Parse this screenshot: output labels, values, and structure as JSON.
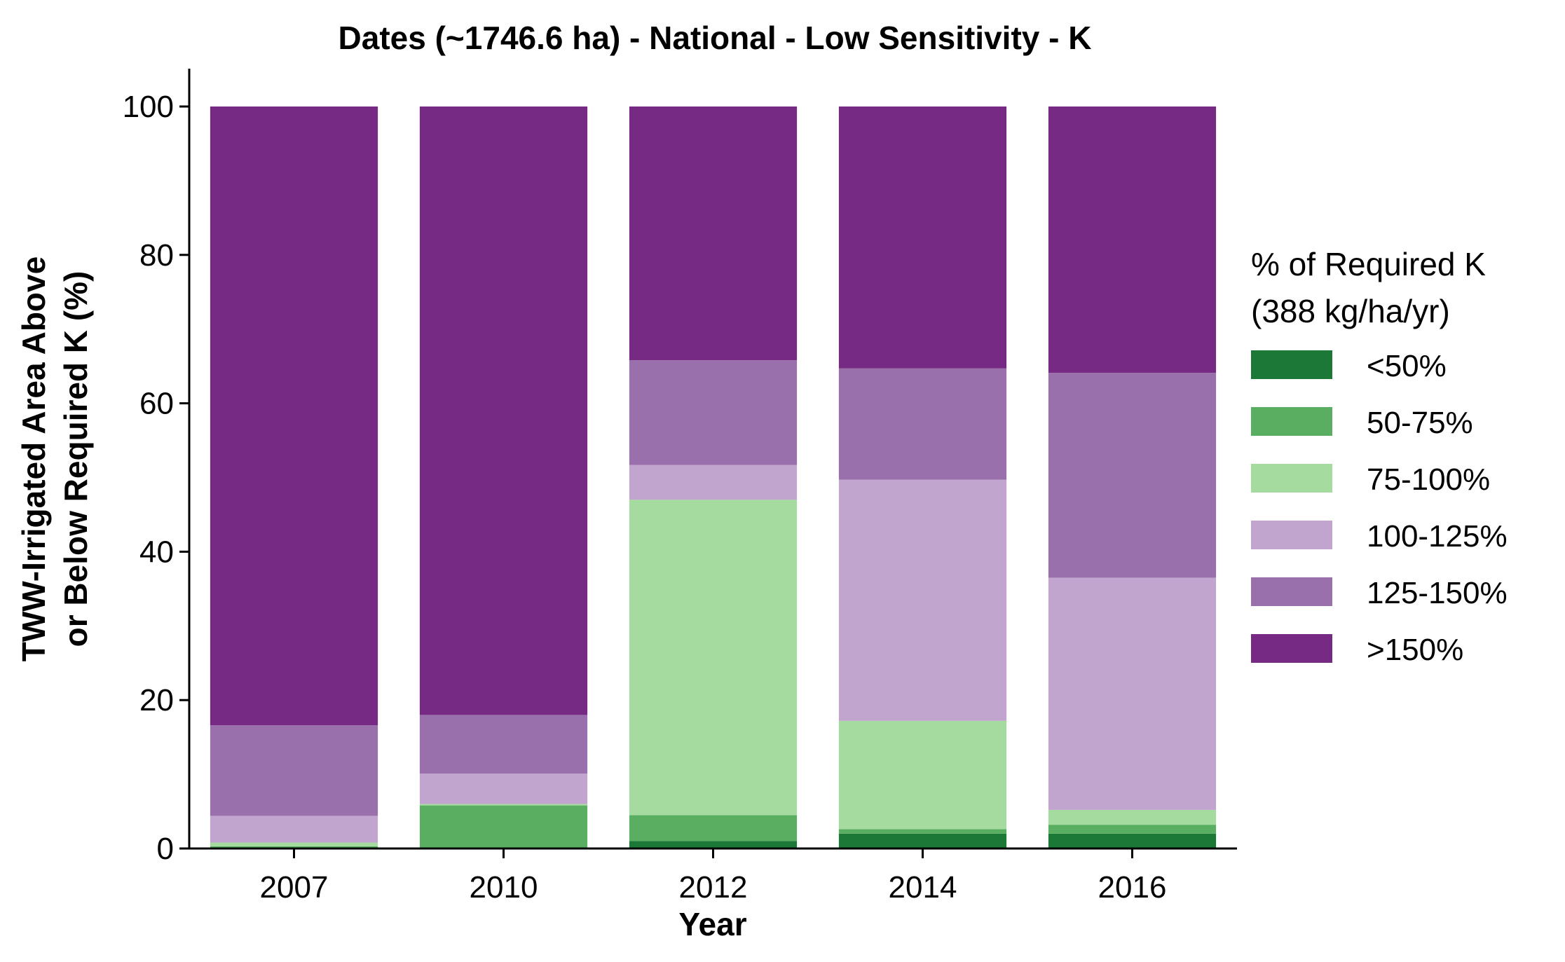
{
  "chart_data": {
    "type": "bar",
    "stacked": true,
    "title": "Dates (~1746.6 ha) - National - Low Sensitivity - K",
    "xlabel": "Year",
    "ylabel": "TWW-Irrigated Area Above or Below Required K (%)",
    "ylabel_lines": [
      "TWW-Irrigated Area Above",
      "or Below Required K (%)"
    ],
    "ylim": [
      0,
      105
    ],
    "yticks": [
      0,
      20,
      40,
      60,
      80,
      100
    ],
    "grid": false,
    "legend_position": "right",
    "legend_title_lines": [
      "% of Required K",
      "(388 kg/ha/yr)"
    ],
    "categories": [
      "2007",
      "2010",
      "2012",
      "2014",
      "2016"
    ],
    "series": [
      {
        "name": "<50%",
        "color": "#1b7837",
        "values": [
          0.1,
          0.1,
          1.0,
          2.0,
          2.0
        ]
      },
      {
        "name": "50-75%",
        "color": "#5aae61",
        "values": [
          0.2,
          5.7,
          3.5,
          0.6,
          1.2
        ]
      },
      {
        "name": "75-100%",
        "color": "#a6dba0",
        "values": [
          0.5,
          0.2,
          42.5,
          14.6,
          2.0
        ]
      },
      {
        "name": "100-125%",
        "color": "#c2a5cf",
        "values": [
          3.6,
          4.1,
          4.7,
          32.5,
          31.3
        ]
      },
      {
        "name": "125-150%",
        "color": "#9970ab",
        "values": [
          12.2,
          7.9,
          14.1,
          15.0,
          27.6
        ]
      },
      {
        "name": ">150%",
        "color": "#762a83",
        "values": [
          83.4,
          82.0,
          34.2,
          35.3,
          35.9
        ]
      }
    ]
  }
}
